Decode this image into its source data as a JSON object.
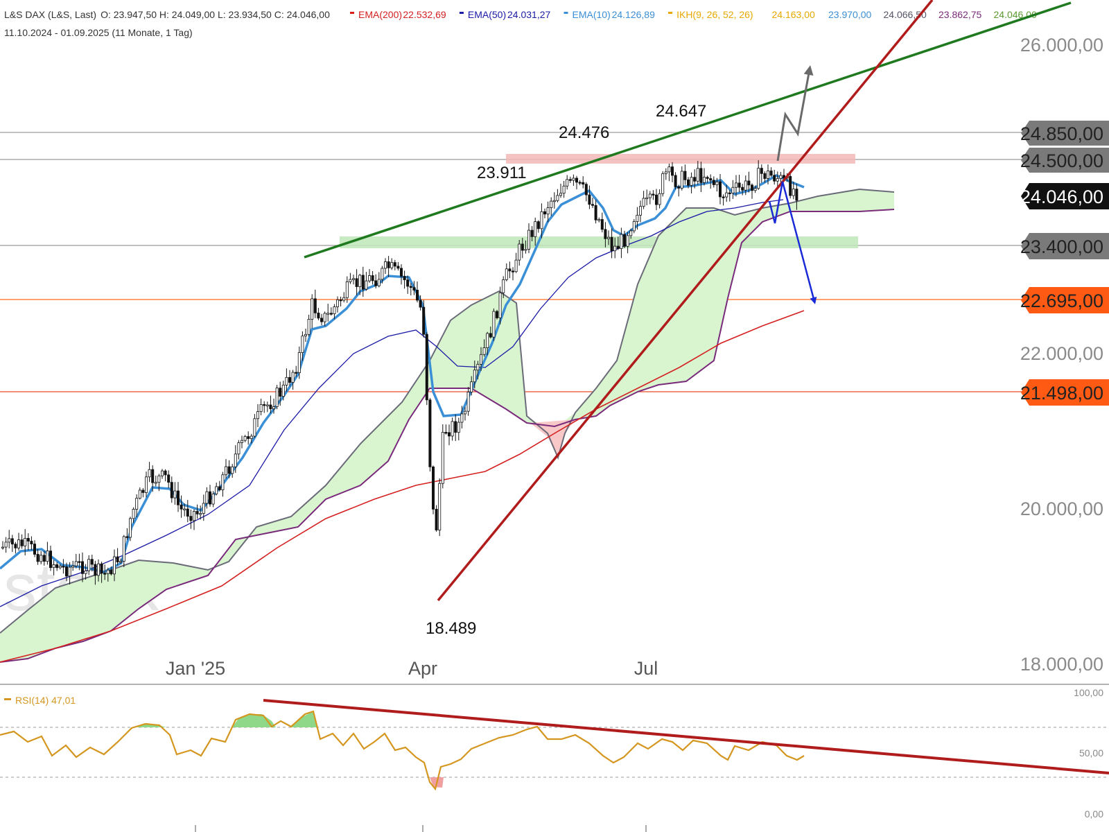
{
  "header": {
    "instrument": "L&S DAX (L&S, Last)",
    "ohlc": "O: 23.947,50  H: 24.049,00  L: 23.934,50  C: 24.046,00",
    "date_range": "11.10.2024 - 01.09.2025  (11 Monate, 1 Tag)",
    "legend": [
      {
        "label": "EMA(200)",
        "value": "22.532,69",
        "color": "#d42020"
      },
      {
        "label": "EMA(50)",
        "value": "24.031,27",
        "color": "#1a1aa6"
      },
      {
        "label": "EMA(10)",
        "value": "24.126,89",
        "color": "#3a8fd6"
      },
      {
        "label": "IKH(9, 26, 52, 26)",
        "value": "24.163,00",
        "color": "#e8a800"
      }
    ],
    "ikh_values": [
      {
        "value": "23.970,00",
        "color": "#3a8fd6"
      },
      {
        "value": "24.066,50",
        "color": "#555566"
      },
      {
        "value": "23.862,75",
        "color": "#7a2a7a"
      },
      {
        "value": "24.046,00",
        "color": "#5a9a30"
      }
    ]
  },
  "watermark": "stock",
  "colors": {
    "up_trend": "#1f7a1f",
    "support_trend": "#b01c1c",
    "ema10": "#3a8fd6",
    "ema50": "#1a1aa6",
    "ema200": "#d42020",
    "cloud": "#d8f5d0",
    "resistance_zone": "#f5b8b8",
    "support_zone": "#bfe8b8",
    "badge_gray": "#7a7a7a",
    "badge_orange": "#ff5a14",
    "badge_black": "#111111",
    "rsi": "#d4961e"
  },
  "chart_data": [
    {
      "type": "candlestick",
      "title": "L&S DAX (L&S, Last)",
      "y_axis": {
        "ticks": [
          "26.000,00",
          "22.000,00",
          "20.000,00",
          "18.000,00"
        ],
        "ylim": [
          17600,
          26300
        ]
      },
      "x_axis": {
        "ticks": [
          "Jan '25",
          "Apr",
          "Jul"
        ]
      },
      "price_levels": [
        {
          "label": "24.850,00",
          "value": 24850,
          "style": "gray"
        },
        {
          "label": "24.500,00",
          "value": 24500,
          "style": "gray"
        },
        {
          "label": "24.046,00",
          "value": 24046,
          "style": "black"
        },
        {
          "label": "23.400,00",
          "value": 23400,
          "style": "gray"
        },
        {
          "label": "22.695,00",
          "value": 22695,
          "style": "orange"
        },
        {
          "label": "21.498,00",
          "value": 21498,
          "style": "orange"
        }
      ],
      "annotations": [
        "24.647",
        "24.476",
        "23.911",
        "18.489"
      ],
      "legend": [
        "EMA(200)",
        "EMA(50)",
        "EMA(10)",
        "IKH(9, 26, 52, 26)"
      ]
    },
    {
      "type": "line",
      "title": "RSI(14) 47,01",
      "y_axis": {
        "ticks": [
          "100,00",
          "50,00",
          "0,00"
        ],
        "ylim": [
          0,
          100
        ]
      },
      "series": [
        {
          "name": "RSI(14)",
          "last": 47.01
        }
      ],
      "reference_lines": [
        70,
        30
      ]
    }
  ]
}
